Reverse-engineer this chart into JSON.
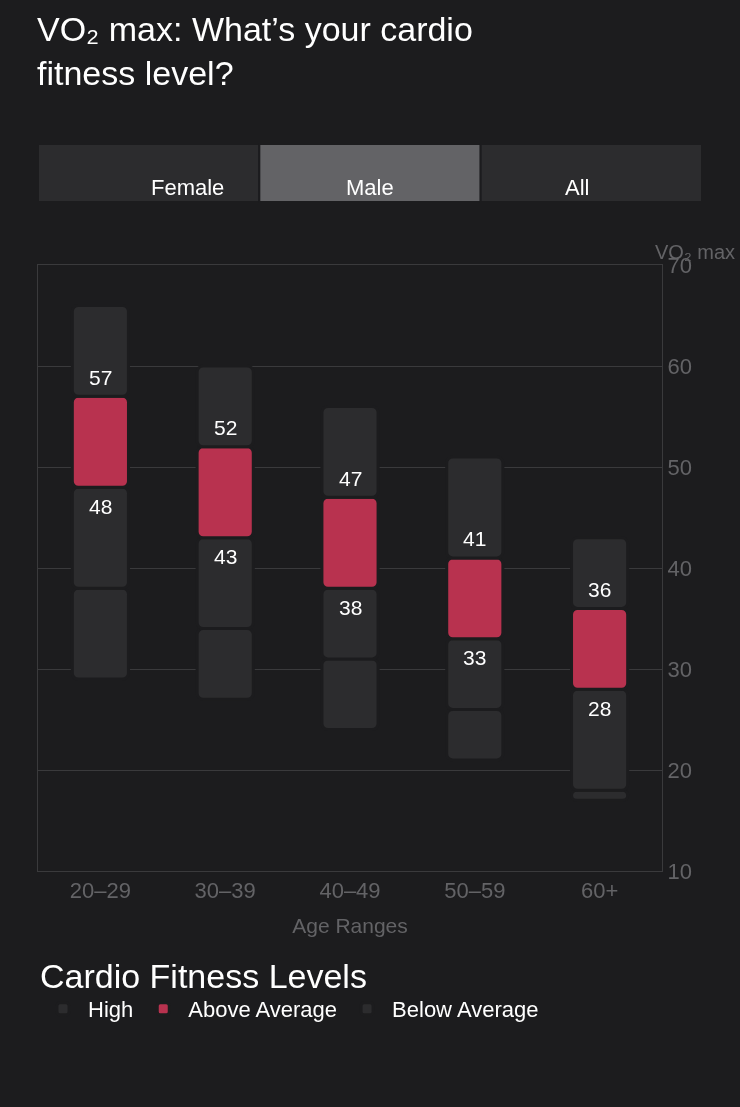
{
  "chart_data": {
    "type": "bar",
    "title": "VO₂ max: What’s your cardio fitness level?",
    "xlabel": "Age Ranges",
    "ylabel": "VO₂ max",
    "legend_title": "Cardio Fitness Levels",
    "categories": [
      "20–29",
      "30–39",
      "40–49",
      "50–59",
      "60+"
    ],
    "series": [
      {
        "color": "#2c2c2e",
        "base": [
          29,
          27,
          24,
          21,
          17
        ],
        "values": [
          9,
          7,
          7,
          5,
          1
        ]
      },
      {
        "name": "Below Average",
        "color": "#2c2c2e",
        "base": [
          38,
          34,
          31,
          26,
          18
        ],
        "values": [
          10,
          9,
          7,
          7,
          10
        ]
      },
      {
        "name": "Above Average",
        "color": "#b8324f",
        "base": [
          48,
          43,
          38,
          33,
          28
        ],
        "values": [
          9,
          9,
          9,
          8,
          8
        ]
      },
      {
        "name": "High",
        "color": "#2c2c2e",
        "base": [
          57,
          52,
          47,
          41,
          36
        ],
        "values": [
          9,
          8,
          9,
          10,
          7
        ]
      }
    ],
    "ylim": [
      10,
      70
    ],
    "yticks": [
      10,
      20,
      30,
      40,
      50,
      60,
      70
    ],
    "grid": "y",
    "legend": "bottom",
    "annotations": [
      "Female",
      "Male",
      "All",
      {
        "text": "57",
        "x": "20–29",
        "y": 57
      },
      {
        "text": "48",
        "x": "20–29",
        "y": 48
      },
      {
        "text": "52",
        "x": "30–39",
        "y": 52
      },
      {
        "text": "43",
        "x": "30–39",
        "y": 43
      },
      {
        "text": "47",
        "x": "40–49",
        "y": 47
      },
      {
        "text": "38",
        "x": "40–49",
        "y": 38
      },
      {
        "text": "41",
        "x": "50–59",
        "y": 41
      },
      {
        "text": "33",
        "x": "50–59",
        "y": 33
      },
      {
        "text": "36",
        "x": "60+",
        "y": 36
      },
      {
        "text": "28",
        "x": "60+",
        "y": 28
      }
    ]
  }
}
